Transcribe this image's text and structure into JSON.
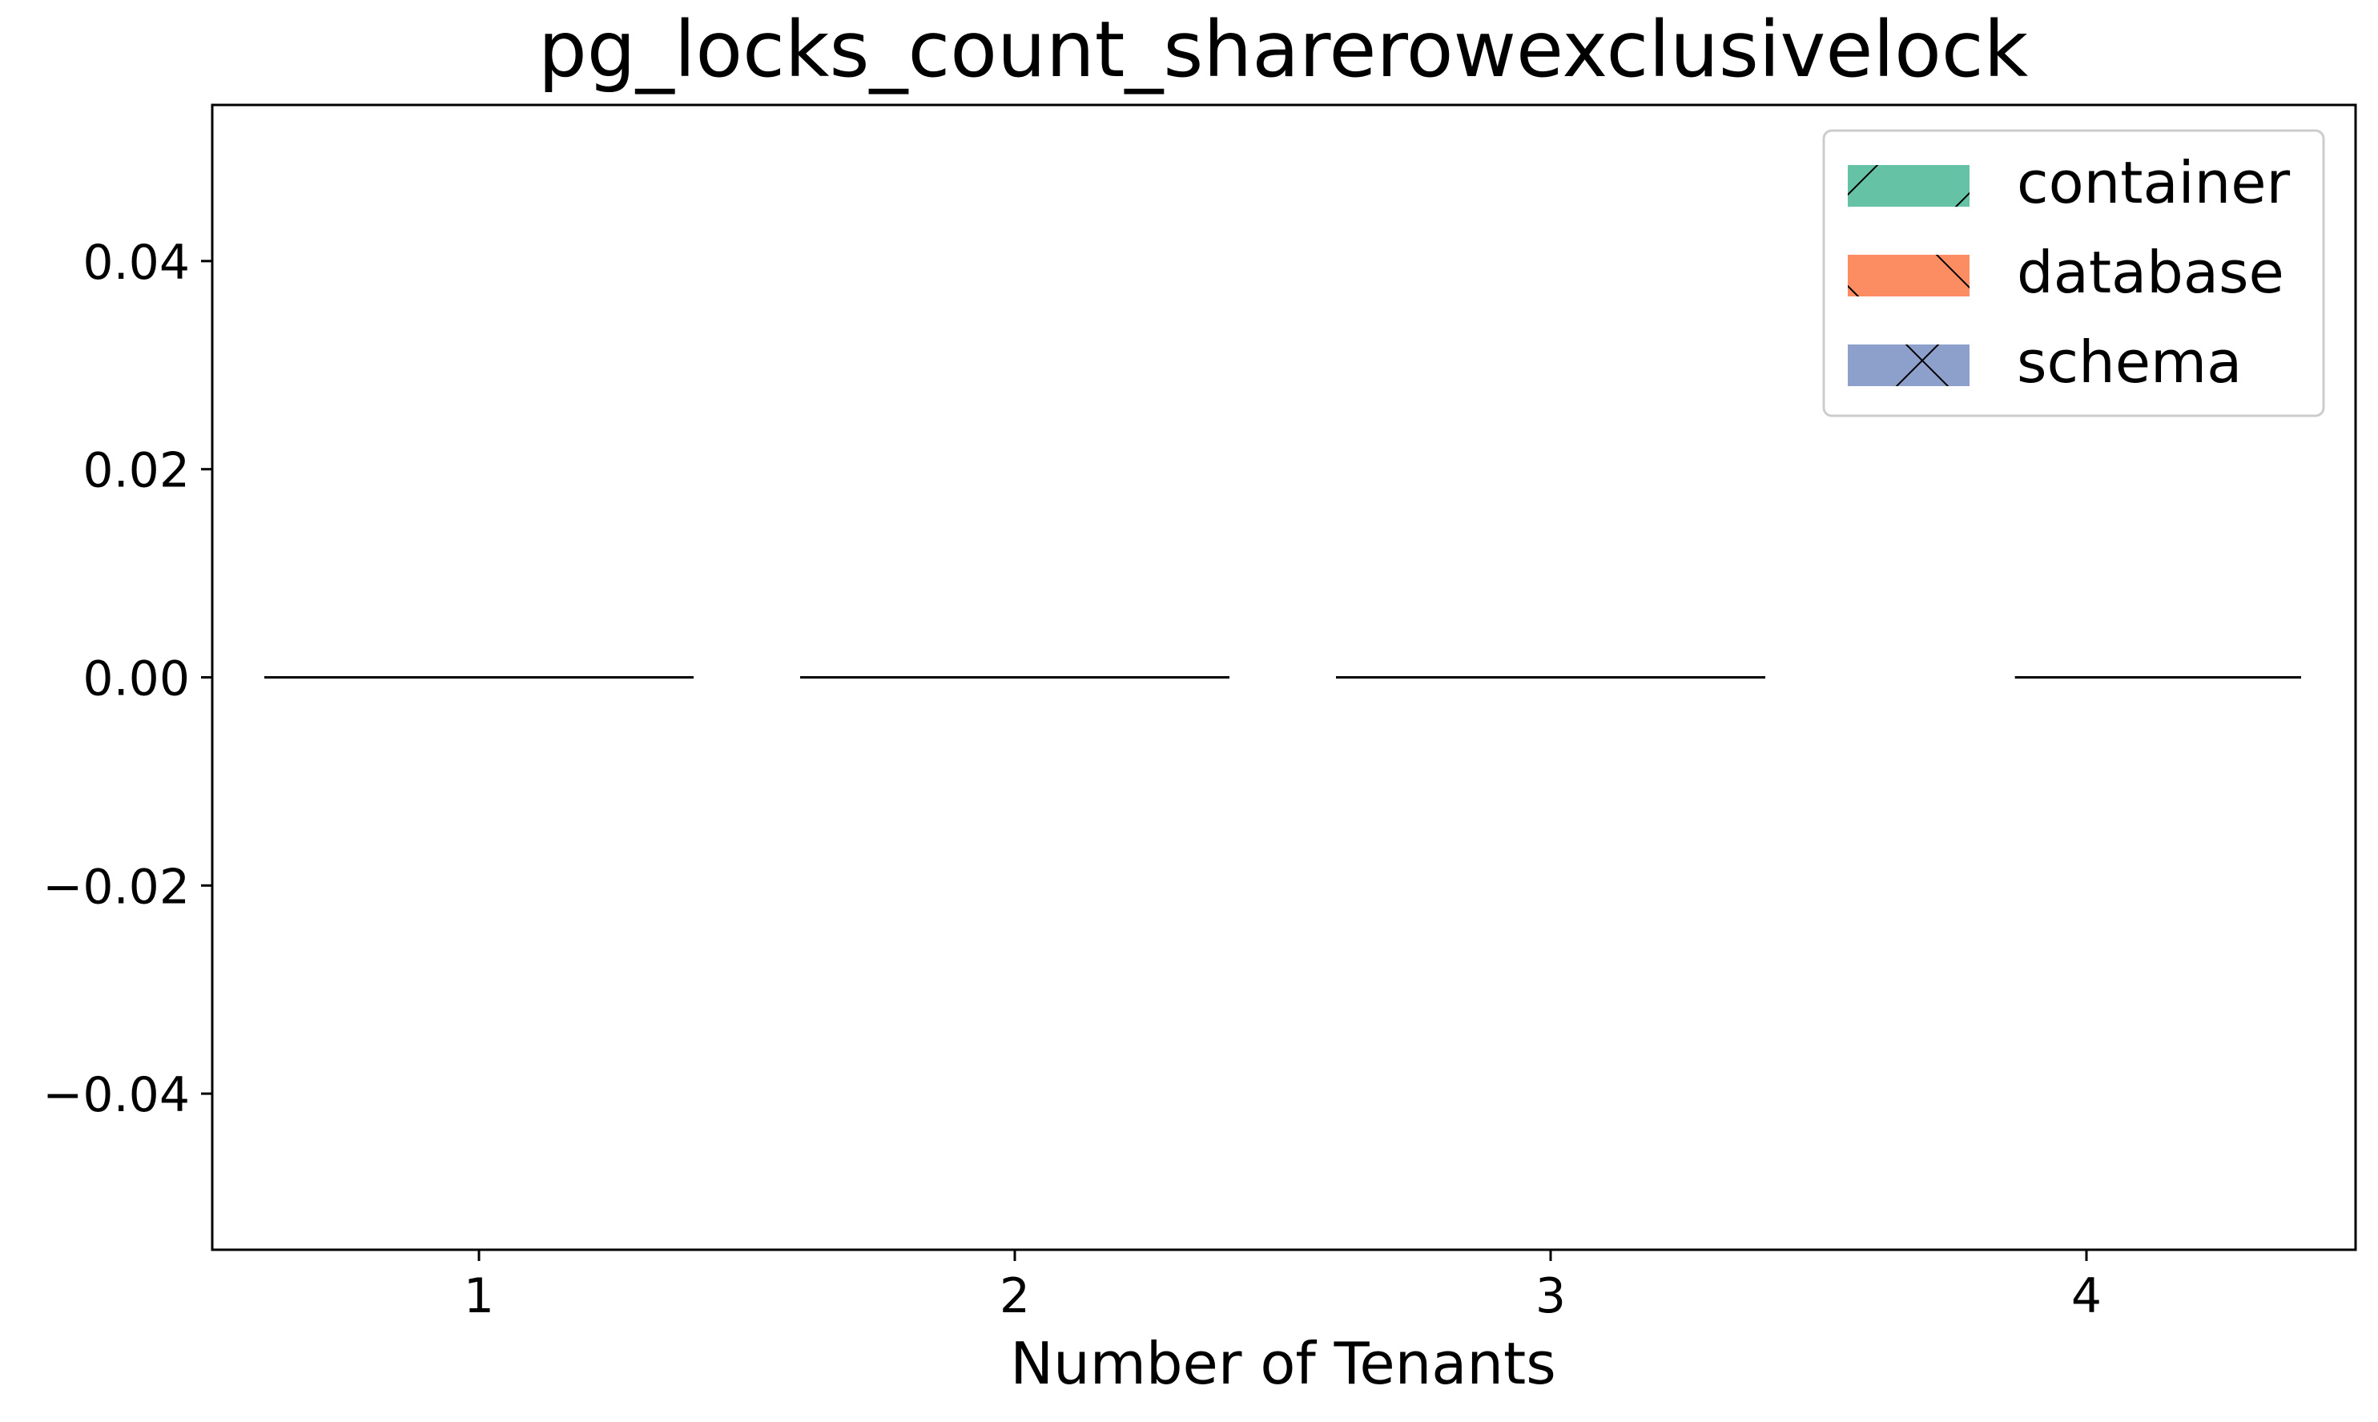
{
  "chart_data": {
    "type": "box",
    "title": "pg_locks_count_sharerowexclusivelock",
    "xlabel": "Number of Tenants",
    "ylabel": "",
    "categories": [
      "1",
      "2",
      "3",
      "4"
    ],
    "ylim": [
      -0.055,
      0.055
    ],
    "yticks": [
      -0.04,
      -0.02,
      0.0,
      0.02,
      0.04
    ],
    "ytick_labels": [
      "−0.04",
      "−0.02",
      "0.00",
      "0.02",
      "0.04"
    ],
    "grid": false,
    "legend_position": "top-right",
    "series": [
      {
        "name": "container",
        "color": "#66c2a5",
        "hatch": "/",
        "values": [
          0,
          0,
          0,
          0
        ]
      },
      {
        "name": "database",
        "color": "#fc8d62",
        "hatch": "\\",
        "values": [
          0,
          0,
          0,
          0
        ]
      },
      {
        "name": "schema",
        "color": "#8da0cb",
        "hatch": "x",
        "values": [
          0,
          0,
          0,
          0
        ]
      }
    ],
    "groups": [
      {
        "category": "1",
        "series_present": [
          "container",
          "database",
          "schema"
        ],
        "median": 0
      },
      {
        "category": "2",
        "series_present": [
          "container",
          "database",
          "schema"
        ],
        "median": 0
      },
      {
        "category": "3",
        "series_present": [
          "container",
          "database",
          "schema"
        ],
        "median": 0
      },
      {
        "category": "4",
        "series_present": [
          "database",
          "schema"
        ],
        "median": 0
      }
    ]
  }
}
